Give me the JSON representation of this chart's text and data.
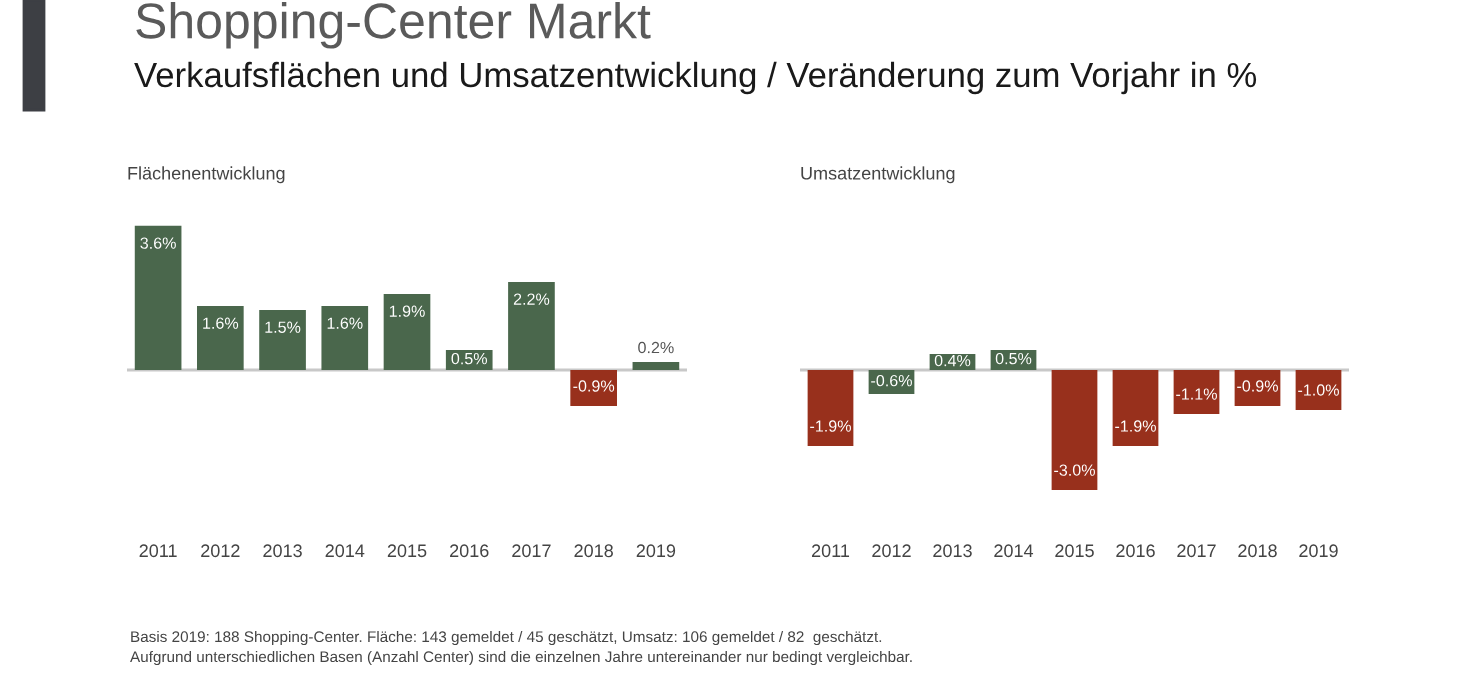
{
  "chart_data": [
    {
      "type": "other",
      "title": "Shopping-Center Markt",
      "subtitle": "Verkaufsflächen und Umsatzentwicklung / Veränderung zum Vorjahr in %",
      "annotations": [
        "Basis 2019: 188 Shopping-Center. Fläche: 143 gemeldet / 45 geschätzt, Umsatz: 106 gemeldet / 82  geschätzt.",
        "Aufgrund unterschiedlichen Basen (Anzahl Center) sind die einzelnen Jahre untereinander nur bedingt vergleichbar."
      ]
    },
    {
      "type": "bar",
      "title": "Flächenentwicklung",
      "categories": [
        "2011",
        "2012",
        "2013",
        "2014",
        "2015",
        "2016",
        "2017",
        "2018",
        "2019"
      ],
      "values": [
        3.6,
        1.6,
        1.5,
        1.6,
        1.9,
        0.5,
        2.2,
        -0.9,
        0.2
      ],
      "value_labels": [
        "3.6%",
        "1.6%",
        "1.5%",
        "1.6%",
        "1.9%",
        "0.5%",
        "2.2%",
        "-0.9%",
        "0.2%"
      ],
      "colors": [
        "#4a674c",
        "#4a674c",
        "#4a674c",
        "#4a674c",
        "#4a674c",
        "#4a674c",
        "#4a674c",
        "#98301c",
        "#4a674c"
      ]
    },
    {
      "type": "bar",
      "title": "Umsatzentwicklung",
      "categories": [
        "2011",
        "2012",
        "2013",
        "2014",
        "2015",
        "2016",
        "2017",
        "2018",
        "2019"
      ],
      "values": [
        -1.9,
        -0.6,
        0.4,
        0.5,
        -3.0,
        -1.9,
        -1.1,
        -0.9,
        -1.0
      ],
      "value_labels": [
        "-1.9%",
        "-0.6%",
        "0.4%",
        "0.5%",
        "-3.0%",
        "-1.9%",
        "-1.1%",
        "-0.9%",
        "-1.0%"
      ],
      "colors": [
        "#98301c",
        "#4a674c",
        "#4a674c",
        "#4a674c",
        "#98301c",
        "#98301c",
        "#98301c",
        "#98301c",
        "#98301c"
      ]
    }
  ]
}
